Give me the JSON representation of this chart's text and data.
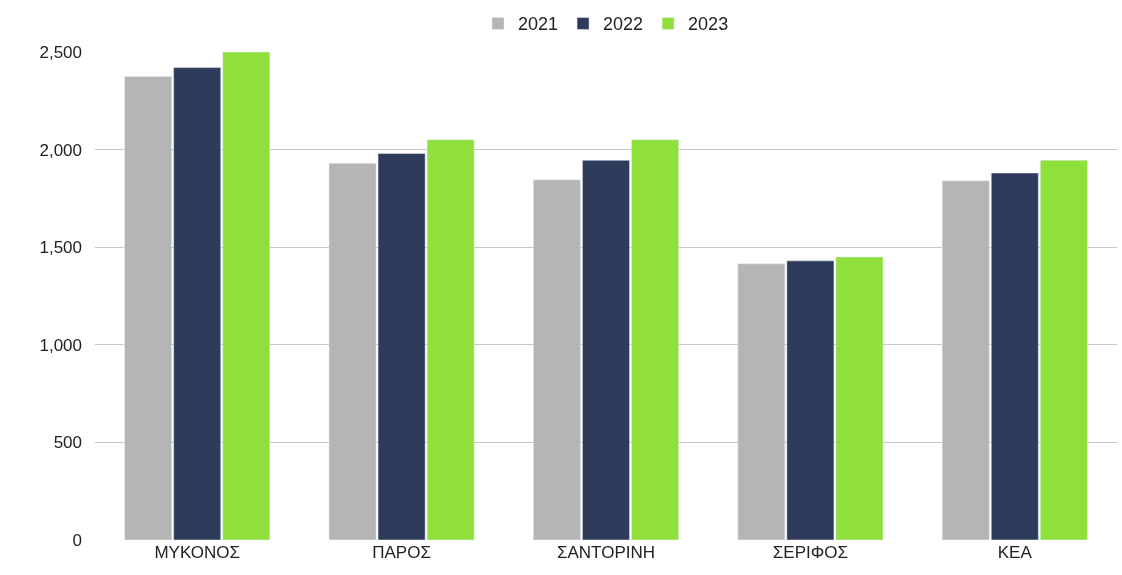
{
  "chart_data": {
    "type": "bar",
    "categories": [
      "ΜΥΚΟΝΟΣ",
      "ΠΑΡΟΣ",
      "ΣΑΝΤΟΡΙΝΗ",
      "ΣΕΡΙΦΟΣ",
      "ΚΕΑ"
    ],
    "series": [
      {
        "name": "2021",
        "color": "#b5b5b5",
        "values": [
          2375,
          1930,
          1845,
          1415,
          1840
        ]
      },
      {
        "name": "2022",
        "color": "#2e3b5a",
        "values": [
          2420,
          1980,
          1945,
          1430,
          1880
        ]
      },
      {
        "name": "2023",
        "color": "#8fe03a",
        "values": [
          2500,
          2050,
          2050,
          1450,
          1945
        ]
      }
    ],
    "ylim": [
      0,
      2500
    ],
    "yticks": [
      0,
      {
        "value": 500,
        "label": "500"
      },
      {
        "value": 1000,
        "label": "1,000"
      },
      {
        "value": 1500,
        "label": "1,500"
      },
      {
        "value": 2000,
        "label": "2,000"
      },
      {
        "value": 2500,
        "label": "2,500"
      }
    ],
    "grid": "y",
    "legend": "top"
  }
}
